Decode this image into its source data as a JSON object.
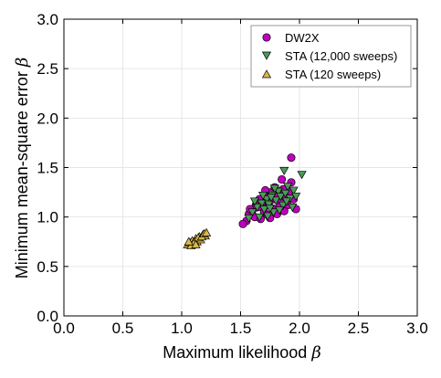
{
  "chart_data": {
    "type": "scatter",
    "xlabel": "Maximum likelihood",
    "xlabel_symbol": "β",
    "ylabel": "Minimum mean-square error",
    "ylabel_symbol": "β",
    "xlim": [
      0.0,
      3.0
    ],
    "ylim": [
      0.0,
      3.0
    ],
    "xticks": [
      "0.0",
      "0.5",
      "1.0",
      "1.5",
      "2.0",
      "2.5",
      "3.0"
    ],
    "yticks": [
      "0.0",
      "0.5",
      "1.0",
      "1.5",
      "2.0",
      "2.5",
      "3.0"
    ],
    "grid": true,
    "legend_position": "top-right",
    "series": [
      {
        "name": "DW2X",
        "marker": "circle",
        "color": "#bf00bf",
        "points": [
          [
            1.93,
            1.6
          ],
          [
            1.93,
            1.35
          ],
          [
            1.85,
            1.38
          ],
          [
            1.55,
            0.96
          ],
          [
            1.52,
            0.93
          ],
          [
            1.57,
            1.03
          ],
          [
            1.6,
            1.07
          ],
          [
            1.62,
            1.0
          ],
          [
            1.65,
            1.1
          ],
          [
            1.68,
            1.15
          ],
          [
            1.7,
            1.05
          ],
          [
            1.72,
            1.2
          ],
          [
            1.74,
            1.12
          ],
          [
            1.76,
            1.25
          ],
          [
            1.78,
            1.18
          ],
          [
            1.8,
            1.08
          ],
          [
            1.82,
            1.22
          ],
          [
            1.84,
            1.16
          ],
          [
            1.86,
            1.28
          ],
          [
            1.88,
            1.2
          ],
          [
            1.9,
            1.12
          ],
          [
            1.92,
            1.26
          ],
          [
            1.95,
            1.18
          ],
          [
            1.97,
            1.08
          ],
          [
            1.67,
            0.98
          ],
          [
            1.63,
            1.12
          ],
          [
            1.73,
            1.02
          ],
          [
            1.79,
            1.3
          ],
          [
            1.83,
            1.1
          ],
          [
            1.87,
            1.06
          ],
          [
            1.58,
            1.08
          ],
          [
            1.66,
            1.18
          ],
          [
            1.75,
            0.99
          ],
          [
            1.71,
            1.27
          ],
          [
            1.81,
            1.03
          ]
        ]
      },
      {
        "name": "STA (12,000 sweeps)",
        "marker": "triangle-down",
        "color": "#4c9a5a",
        "points": [
          [
            1.87,
            1.47
          ],
          [
            2.02,
            1.43
          ],
          [
            1.95,
            1.27
          ],
          [
            1.9,
            1.31
          ],
          [
            1.82,
            1.26
          ],
          [
            1.77,
            1.22
          ],
          [
            1.72,
            1.18
          ],
          [
            1.68,
            1.14
          ],
          [
            1.64,
            1.1
          ],
          [
            1.6,
            1.05
          ],
          [
            1.57,
            0.99
          ],
          [
            1.66,
            1.0
          ],
          [
            1.7,
            1.08
          ],
          [
            1.74,
            1.13
          ],
          [
            1.78,
            1.05
          ],
          [
            1.8,
            1.17
          ],
          [
            1.84,
            1.21
          ],
          [
            1.86,
            1.12
          ],
          [
            1.88,
            1.24
          ],
          [
            1.92,
            1.19
          ],
          [
            1.94,
            1.1
          ],
          [
            1.97,
            1.21
          ],
          [
            1.76,
            1.2
          ],
          [
            1.73,
            1.01
          ],
          [
            1.69,
            1.22
          ],
          [
            1.83,
            1.07
          ],
          [
            1.62,
            1.16
          ],
          [
            1.79,
            1.29
          ],
          [
            1.89,
            1.16
          ],
          [
            1.75,
            1.09
          ]
        ]
      },
      {
        "name": "STA (120 sweeps)",
        "marker": "triangle-up",
        "color": "#d9b84a",
        "points": [
          [
            1.05,
            0.72
          ],
          [
            1.07,
            0.74
          ],
          [
            1.09,
            0.76
          ],
          [
            1.1,
            0.73
          ],
          [
            1.12,
            0.78
          ],
          [
            1.13,
            0.75
          ],
          [
            1.15,
            0.8
          ],
          [
            1.16,
            0.77
          ],
          [
            1.18,
            0.82
          ],
          [
            1.2,
            0.81
          ],
          [
            1.08,
            0.71
          ],
          [
            1.11,
            0.75
          ],
          [
            1.14,
            0.79
          ],
          [
            1.17,
            0.8
          ],
          [
            1.19,
            0.83
          ],
          [
            1.06,
            0.75
          ],
          [
            1.21,
            0.84
          ],
          [
            1.12,
            0.72
          ]
        ]
      }
    ]
  }
}
